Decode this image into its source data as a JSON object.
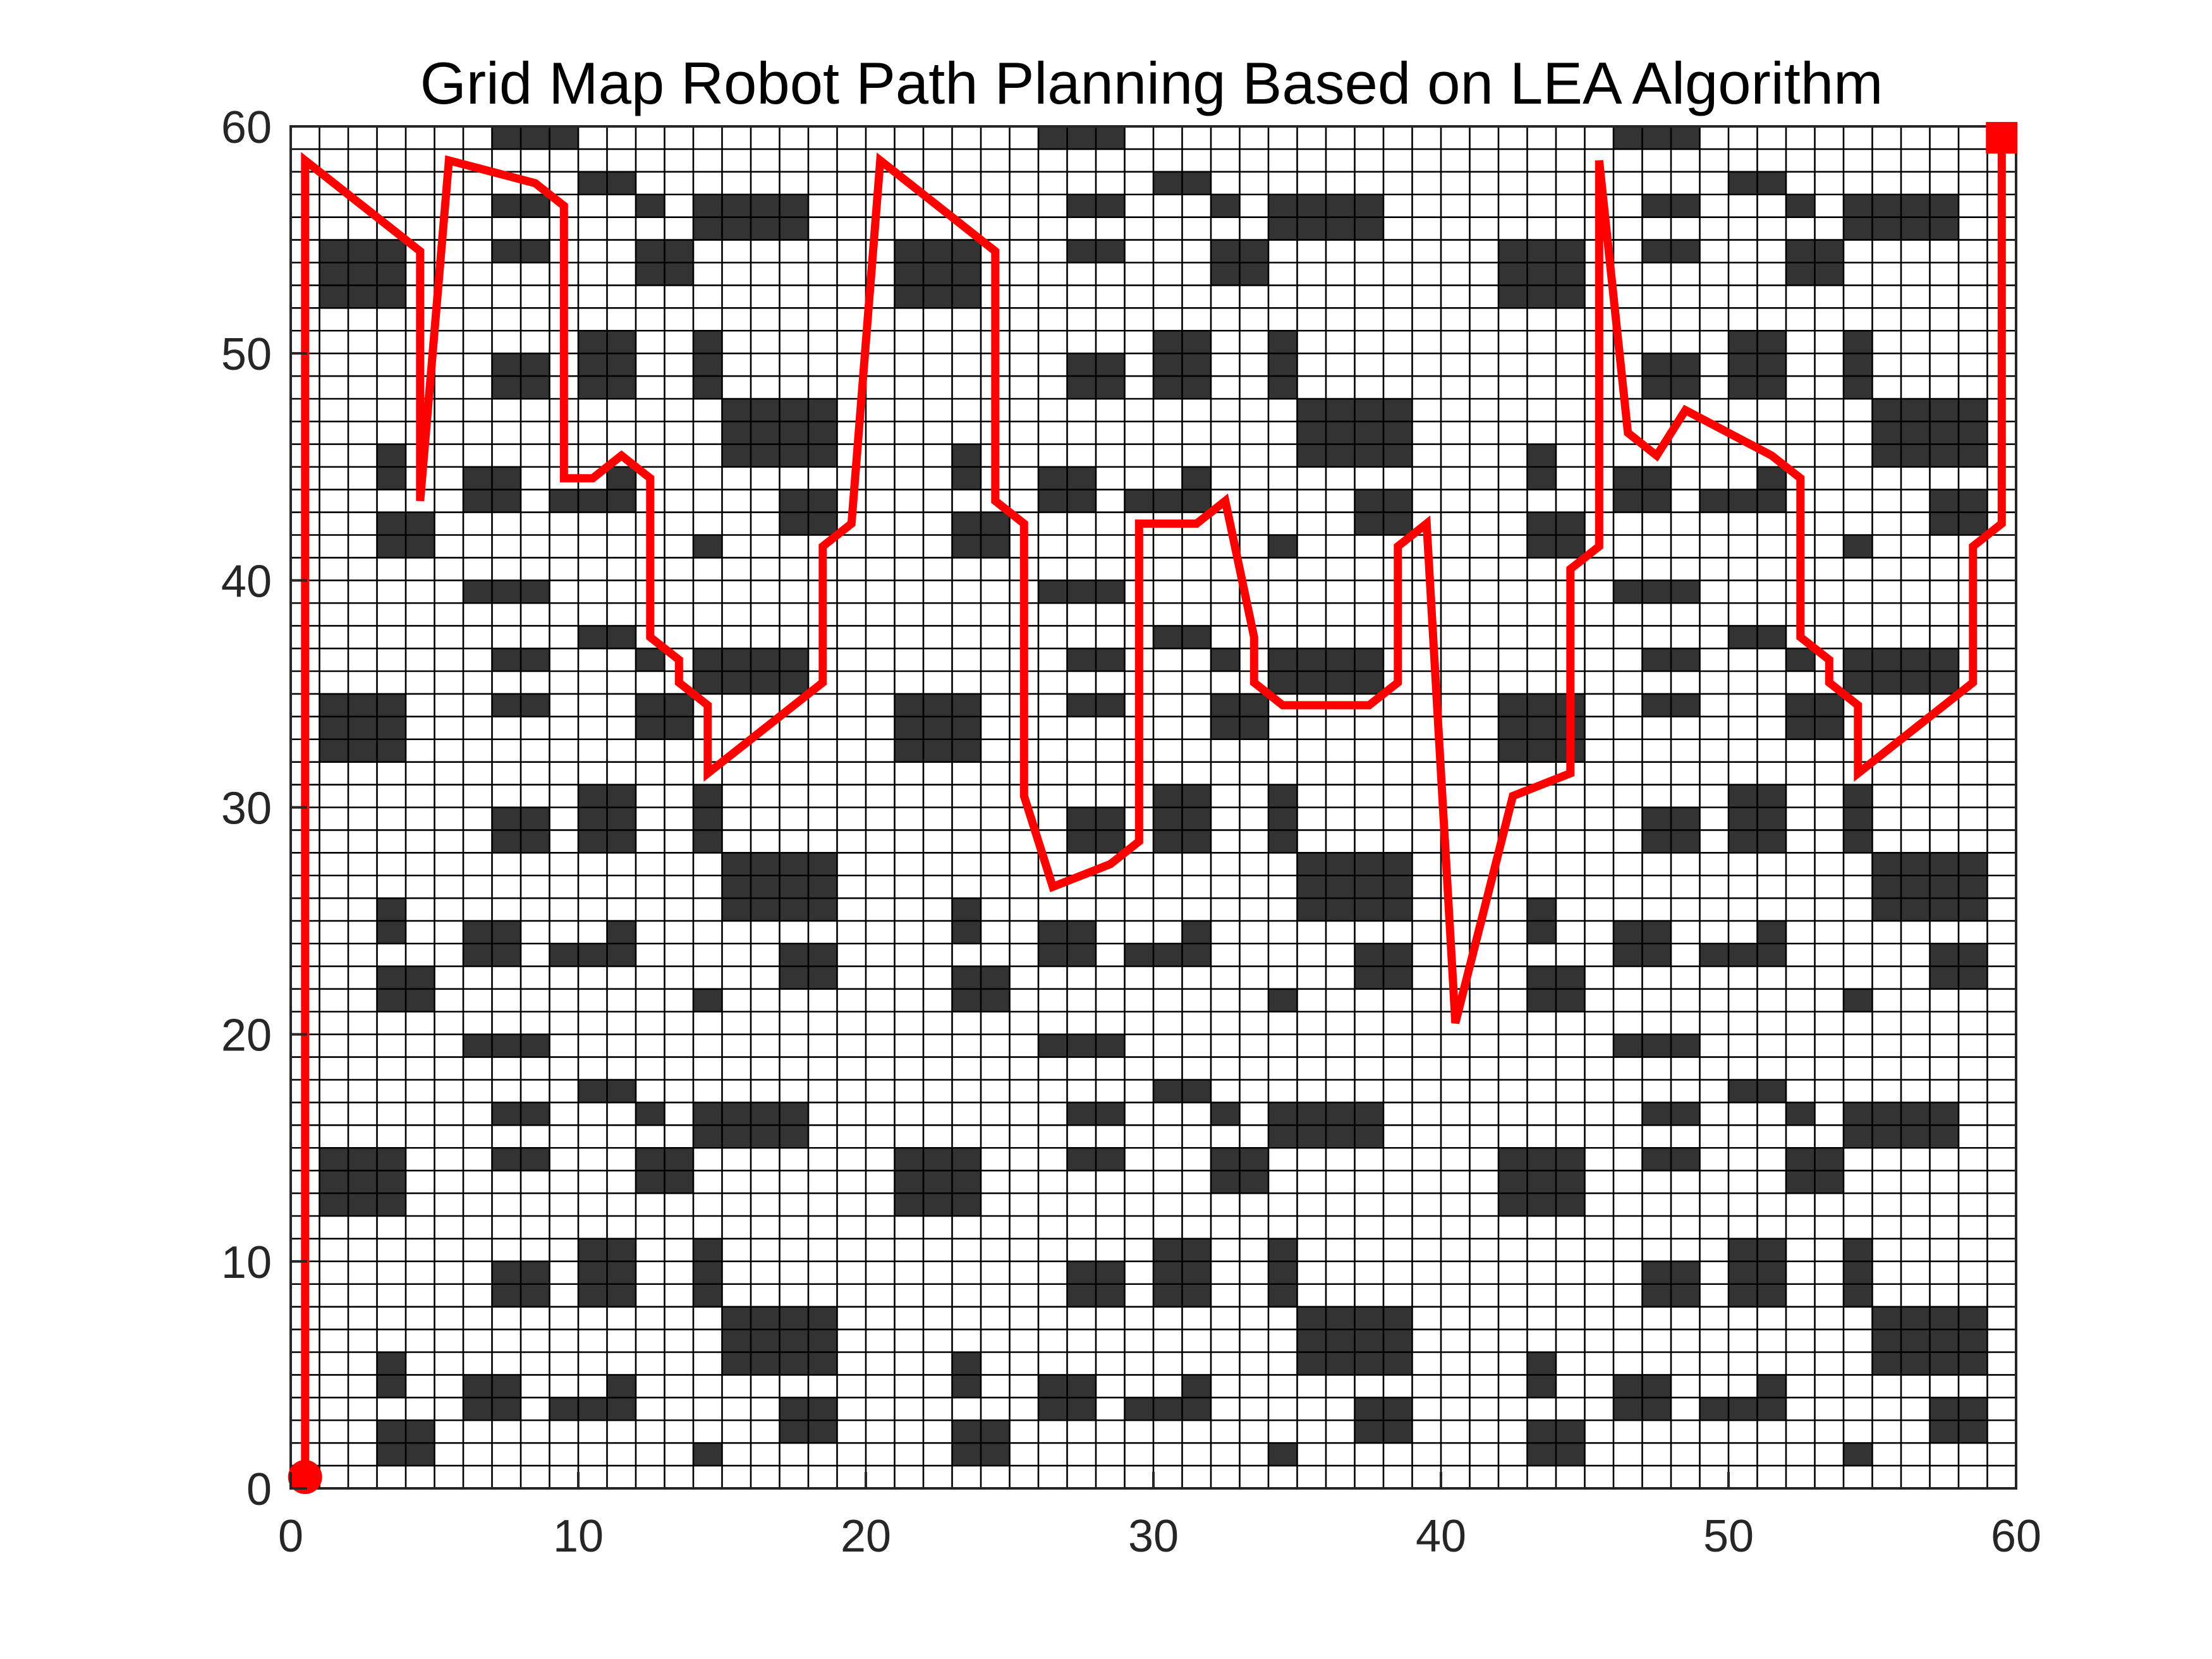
{
  "chart_data": {
    "type": "grid-path",
    "title": "Grid Map Robot Path Planning Based on LEA Algorithm",
    "xlabel": "",
    "ylabel": "",
    "xlim": [
      0,
      60
    ],
    "ylim": [
      0,
      60
    ],
    "xticks": [
      0,
      10,
      20,
      30,
      40,
      50,
      60
    ],
    "yticks": [
      0,
      10,
      20,
      30,
      40,
      50,
      60
    ],
    "xtick_labels": [
      "0",
      "10",
      "20",
      "30",
      "40",
      "50",
      "60"
    ],
    "ytick_labels": [
      "0",
      "10",
      "20",
      "30",
      "40",
      "50",
      "60"
    ],
    "grid_size": [
      60,
      60
    ],
    "grid": true,
    "obstacle_color": "#333333",
    "path_color": "#ff0000",
    "obstacles": [
      [
        7,
        59,
        3,
        1
      ],
      [
        26,
        59,
        3,
        1
      ],
      [
        46,
        59,
        3,
        1
      ],
      [
        10,
        57,
        2,
        1
      ],
      [
        30,
        57,
        2,
        1
      ],
      [
        50,
        57,
        2,
        1
      ],
      [
        7,
        56,
        2,
        1
      ],
      [
        12,
        56,
        1,
        1
      ],
      [
        14,
        55,
        4,
        2
      ],
      [
        27,
        56,
        2,
        1
      ],
      [
        32,
        56,
        1,
        1
      ],
      [
        34,
        55,
        4,
        2
      ],
      [
        47,
        56,
        2,
        1
      ],
      [
        52,
        56,
        1,
        1
      ],
      [
        54,
        55,
        4,
        2
      ],
      [
        1,
        52,
        3,
        3
      ],
      [
        7,
        54,
        2,
        1
      ],
      [
        12,
        53,
        2,
        2
      ],
      [
        21,
        52,
        3,
        3
      ],
      [
        27,
        54,
        2,
        1
      ],
      [
        32,
        53,
        2,
        2
      ],
      [
        42,
        52,
        3,
        3
      ],
      [
        47,
        54,
        2,
        1
      ],
      [
        52,
        53,
        2,
        2
      ],
      [
        10,
        48,
        2,
        3
      ],
      [
        7,
        48,
        2,
        2
      ],
      [
        14,
        48,
        1,
        3
      ],
      [
        27,
        48,
        2,
        2
      ],
      [
        30,
        48,
        2,
        3
      ],
      [
        34,
        48,
        1,
        3
      ],
      [
        47,
        48,
        2,
        2
      ],
      [
        50,
        48,
        2,
        3
      ],
      [
        54,
        48,
        1,
        3
      ],
      [
        15,
        45,
        4,
        3
      ],
      [
        35,
        45,
        4,
        3
      ],
      [
        55,
        45,
        4,
        3
      ],
      [
        3,
        44,
        1,
        2
      ],
      [
        23,
        44,
        1,
        2
      ],
      [
        43,
        44,
        1,
        2
      ],
      [
        6,
        43,
        2,
        2
      ],
      [
        26,
        43,
        2,
        2
      ],
      [
        46,
        43,
        2,
        2
      ],
      [
        9,
        43,
        3,
        1
      ],
      [
        11,
        44,
        1,
        1
      ],
      [
        29,
        43,
        3,
        1
      ],
      [
        31,
        44,
        1,
        1
      ],
      [
        49,
        43,
        3,
        1
      ],
      [
        51,
        44,
        1,
        1
      ],
      [
        17,
        42,
        2,
        2
      ],
      [
        37,
        42,
        2,
        2
      ],
      [
        57,
        42,
        2,
        2
      ],
      [
        3,
        41,
        2,
        2
      ],
      [
        23,
        41,
        2,
        2
      ],
      [
        43,
        41,
        2,
        2
      ],
      [
        14,
        41,
        1,
        1
      ],
      [
        34,
        41,
        1,
        1
      ],
      [
        54,
        41,
        1,
        1
      ],
      [
        6,
        39,
        3,
        1
      ],
      [
        26,
        39,
        3,
        1
      ],
      [
        46,
        39,
        3,
        1
      ],
      [
        10,
        37,
        2,
        1
      ],
      [
        30,
        37,
        2,
        1
      ],
      [
        50,
        37,
        2,
        1
      ],
      [
        7,
        36,
        2,
        1
      ],
      [
        12,
        36,
        1,
        1
      ],
      [
        14,
        35,
        4,
        2
      ],
      [
        27,
        36,
        2,
        1
      ],
      [
        32,
        36,
        1,
        1
      ],
      [
        34,
        35,
        4,
        2
      ],
      [
        47,
        36,
        2,
        1
      ],
      [
        52,
        36,
        1,
        1
      ],
      [
        54,
        35,
        4,
        2
      ],
      [
        1,
        32,
        3,
        3
      ],
      [
        7,
        34,
        2,
        1
      ],
      [
        12,
        33,
        2,
        2
      ],
      [
        21,
        32,
        3,
        3
      ],
      [
        27,
        34,
        2,
        1
      ],
      [
        32,
        33,
        2,
        2
      ],
      [
        42,
        32,
        3,
        3
      ],
      [
        47,
        34,
        2,
        1
      ],
      [
        52,
        33,
        2,
        2
      ],
      [
        10,
        28,
        2,
        3
      ],
      [
        7,
        28,
        2,
        2
      ],
      [
        14,
        28,
        1,
        3
      ],
      [
        27,
        28,
        2,
        2
      ],
      [
        30,
        28,
        2,
        3
      ],
      [
        34,
        28,
        1,
        3
      ],
      [
        47,
        28,
        2,
        2
      ],
      [
        50,
        28,
        2,
        3
      ],
      [
        54,
        28,
        1,
        3
      ],
      [
        15,
        25,
        4,
        3
      ],
      [
        35,
        25,
        4,
        3
      ],
      [
        55,
        25,
        4,
        3
      ],
      [
        3,
        24,
        1,
        2
      ],
      [
        23,
        24,
        1,
        2
      ],
      [
        43,
        24,
        1,
        2
      ],
      [
        6,
        23,
        2,
        2
      ],
      [
        26,
        23,
        2,
        2
      ],
      [
        46,
        23,
        2,
        2
      ],
      [
        9,
        23,
        3,
        1
      ],
      [
        11,
        24,
        1,
        1
      ],
      [
        29,
        23,
        3,
        1
      ],
      [
        31,
        24,
        1,
        1
      ],
      [
        49,
        23,
        3,
        1
      ],
      [
        51,
        24,
        1,
        1
      ],
      [
        17,
        22,
        2,
        2
      ],
      [
        37,
        22,
        2,
        2
      ],
      [
        57,
        22,
        2,
        2
      ],
      [
        3,
        21,
        2,
        2
      ],
      [
        23,
        21,
        2,
        2
      ],
      [
        43,
        21,
        2,
        2
      ],
      [
        14,
        21,
        1,
        1
      ],
      [
        34,
        21,
        1,
        1
      ],
      [
        54,
        21,
        1,
        1
      ],
      [
        6,
        19,
        3,
        1
      ],
      [
        26,
        19,
        3,
        1
      ],
      [
        46,
        19,
        3,
        1
      ],
      [
        10,
        17,
        2,
        1
      ],
      [
        30,
        17,
        2,
        1
      ],
      [
        50,
        17,
        2,
        1
      ],
      [
        7,
        16,
        2,
        1
      ],
      [
        12,
        16,
        1,
        1
      ],
      [
        14,
        15,
        4,
        2
      ],
      [
        27,
        16,
        2,
        1
      ],
      [
        32,
        16,
        1,
        1
      ],
      [
        34,
        15,
        4,
        2
      ],
      [
        47,
        16,
        2,
        1
      ],
      [
        52,
        16,
        1,
        1
      ],
      [
        54,
        15,
        4,
        2
      ],
      [
        1,
        12,
        3,
        3
      ],
      [
        7,
        14,
        2,
        1
      ],
      [
        12,
        13,
        2,
        2
      ],
      [
        21,
        12,
        3,
        3
      ],
      [
        27,
        14,
        2,
        1
      ],
      [
        32,
        13,
        2,
        2
      ],
      [
        42,
        12,
        3,
        3
      ],
      [
        47,
        14,
        2,
        1
      ],
      [
        52,
        13,
        2,
        2
      ],
      [
        10,
        8,
        2,
        3
      ],
      [
        7,
        8,
        2,
        2
      ],
      [
        14,
        8,
        1,
        3
      ],
      [
        27,
        8,
        2,
        2
      ],
      [
        30,
        8,
        2,
        3
      ],
      [
        34,
        8,
        1,
        3
      ],
      [
        47,
        8,
        2,
        2
      ],
      [
        50,
        8,
        2,
        3
      ],
      [
        54,
        8,
        1,
        3
      ],
      [
        15,
        5,
        4,
        3
      ],
      [
        35,
        5,
        4,
        3
      ],
      [
        55,
        5,
        4,
        3
      ],
      [
        3,
        4,
        1,
        2
      ],
      [
        23,
        4,
        1,
        2
      ],
      [
        43,
        4,
        1,
        2
      ],
      [
        6,
        3,
        2,
        2
      ],
      [
        26,
        3,
        2,
        2
      ],
      [
        46,
        3,
        2,
        2
      ],
      [
        9,
        3,
        3,
        1
      ],
      [
        11,
        4,
        1,
        1
      ],
      [
        29,
        3,
        3,
        1
      ],
      [
        31,
        4,
        1,
        1
      ],
      [
        49,
        3,
        3,
        1
      ],
      [
        51,
        4,
        1,
        1
      ],
      [
        17,
        2,
        2,
        2
      ],
      [
        37,
        2,
        2,
        2
      ],
      [
        57,
        2,
        2,
        2
      ],
      [
        3,
        1,
        2,
        2
      ],
      [
        23,
        1,
        2,
        2
      ],
      [
        43,
        1,
        2,
        2
      ],
      [
        14,
        1,
        1,
        1
      ],
      [
        34,
        1,
        1,
        1
      ],
      [
        54,
        1,
        1,
        1
      ]
    ],
    "path": {
      "x": [
        0.5,
        0.5,
        4.5,
        4.5,
        5.5,
        8.5,
        9.5,
        9.5,
        10.5,
        11.5,
        12.5,
        12.5,
        13.5,
        13.5,
        14.5,
        14.5,
        18.5,
        18.5,
        19.5,
        20.5,
        24.5,
        24.5,
        25.5,
        25.5,
        26.5,
        28.5,
        29.5,
        29.5,
        31.5,
        32.5,
        33.5,
        33.5,
        34.5,
        37.5,
        38.5,
        38.5,
        39.5,
        40.5,
        42.5,
        44.5,
        44.5,
        45.5,
        45.5,
        46.5,
        47.5,
        48.5,
        51.5,
        52.5,
        52.5,
        53.5,
        53.5,
        54.5,
        54.5,
        58.5,
        58.5,
        59.5,
        59.5
      ],
      "y": [
        0.5,
        58.5,
        54.5,
        43.5,
        58.5,
        57.5,
        56.5,
        44.5,
        44.5,
        45.5,
        44.5,
        37.5,
        36.5,
        35.5,
        34.5,
        31.5,
        35.5,
        41.5,
        42.5,
        58.5,
        54.5,
        43.5,
        42.5,
        30.5,
        26.5,
        27.5,
        28.5,
        42.5,
        42.5,
        43.5,
        37.5,
        35.5,
        34.5,
        34.5,
        35.5,
        41.5,
        42.5,
        20.5,
        30.5,
        31.5,
        40.5,
        41.5,
        58.5,
        46.5,
        45.5,
        47.5,
        45.5,
        44.5,
        37.5,
        36.5,
        35.5,
        34.5,
        31.5,
        35.5,
        41.5,
        42.5,
        59.5
      ]
    },
    "start": {
      "x": 0.5,
      "y": 0.5,
      "marker": "circle"
    },
    "goal": {
      "x": 59.5,
      "y": 59.5,
      "marker": "square"
    }
  }
}
